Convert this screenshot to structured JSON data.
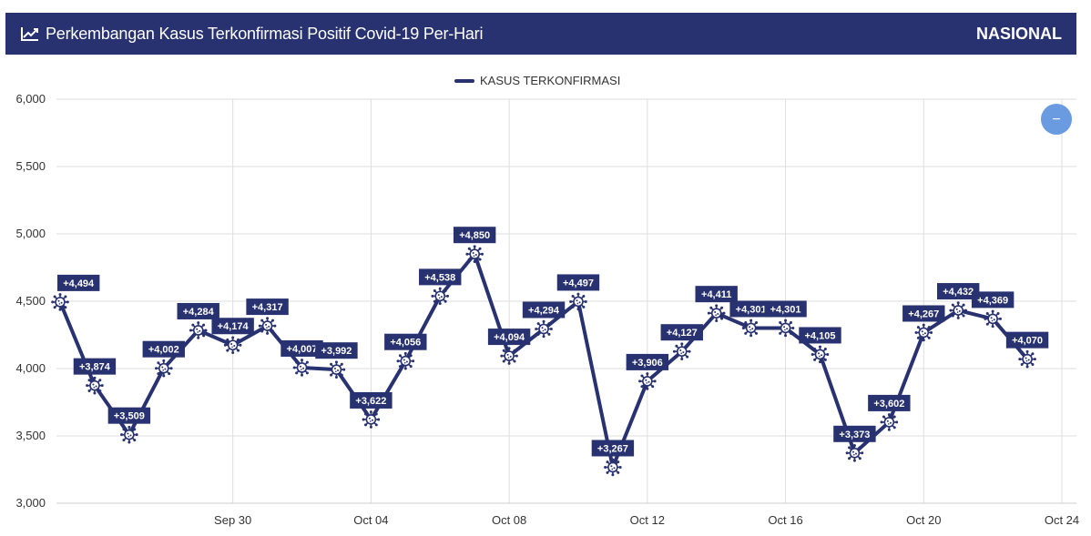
{
  "header": {
    "title": "Perkembangan Kasus Terkonfirmasi Positif Covid-19 Per-Hari",
    "scope": "NASIONAL",
    "icon": "trend-chart-icon"
  },
  "colors": {
    "primary": "#283271",
    "zoom_button": "#6a9ae0",
    "grid": "#dddddd"
  },
  "zoom_button": {
    "icon": "minus-icon",
    "symbol": "−"
  },
  "chart_data": {
    "type": "line",
    "title": "",
    "xlabel": "",
    "ylabel": "",
    "ylim": [
      3000,
      6000
    ],
    "yticks": [
      3000,
      3500,
      4000,
      4500,
      5000,
      5500,
      6000
    ],
    "ytick_labels": [
      "3,000",
      "3,500",
      "4,000",
      "4,500",
      "5,000",
      "5,500",
      "6,000"
    ],
    "x_range": [
      "2020-09-25",
      "2020-10-24"
    ],
    "xticks": [
      {
        "date": "2020-09-30",
        "label": "Sep 30"
      },
      {
        "date": "2020-10-04",
        "label": "Oct 04"
      },
      {
        "date": "2020-10-08",
        "label": "Oct 08"
      },
      {
        "date": "2020-10-12",
        "label": "Oct 12"
      },
      {
        "date": "2020-10-16",
        "label": "Oct 16"
      },
      {
        "date": "2020-10-20",
        "label": "Oct 20"
      },
      {
        "date": "2020-10-24",
        "label": "Oct 24"
      }
    ],
    "grid": true,
    "legend_position": "top-center",
    "series": [
      {
        "name": "KASUS TERKONFIRMASI",
        "color": "#283271",
        "marker": "virus-icon",
        "points": [
          {
            "x": "2020-09-25",
            "y": 4494,
            "label": "+4,494"
          },
          {
            "x": "2020-09-26",
            "y": 3874,
            "label": "+3,874"
          },
          {
            "x": "2020-09-27",
            "y": 3509,
            "label": "+3,509"
          },
          {
            "x": "2020-09-28",
            "y": 4002,
            "label": "+4,002"
          },
          {
            "x": "2020-09-29",
            "y": 4284,
            "label": "+4,284"
          },
          {
            "x": "2020-09-30",
            "y": 4174,
            "label": "+4,174"
          },
          {
            "x": "2020-10-01",
            "y": 4317,
            "label": "+4,317"
          },
          {
            "x": "2020-10-02",
            "y": 4007,
            "label": "+4,007"
          },
          {
            "x": "2020-10-03",
            "y": 3992,
            "label": "+3,992"
          },
          {
            "x": "2020-10-04",
            "y": 3622,
            "label": "+3,622"
          },
          {
            "x": "2020-10-05",
            "y": 4056,
            "label": "+4,056"
          },
          {
            "x": "2020-10-06",
            "y": 4538,
            "label": "+4,538"
          },
          {
            "x": "2020-10-07",
            "y": 4850,
            "label": "+4,850"
          },
          {
            "x": "2020-10-08",
            "y": 4094,
            "label": "+4,094"
          },
          {
            "x": "2020-10-09",
            "y": 4294,
            "label": "+4,294"
          },
          {
            "x": "2020-10-10",
            "y": 4497,
            "label": "+4,497"
          },
          {
            "x": "2020-10-11",
            "y": 3267,
            "label": "+3,267"
          },
          {
            "x": "2020-10-12",
            "y": 3906,
            "label": "+3,906"
          },
          {
            "x": "2020-10-13",
            "y": 4127,
            "label": "+4,127"
          },
          {
            "x": "2020-10-14",
            "y": 4411,
            "label": "+4,411"
          },
          {
            "x": "2020-10-15",
            "y": 4301,
            "label": "+4,301"
          },
          {
            "x": "2020-10-16",
            "y": 4301,
            "label": "+4,301"
          },
          {
            "x": "2020-10-17",
            "y": 4105,
            "label": "+4,105"
          },
          {
            "x": "2020-10-18",
            "y": 3373,
            "label": "+3,373"
          },
          {
            "x": "2020-10-19",
            "y": 3602,
            "label": "+3,602"
          },
          {
            "x": "2020-10-20",
            "y": 4267,
            "label": "+4,267"
          },
          {
            "x": "2020-10-21",
            "y": 4432,
            "label": "+4,432"
          },
          {
            "x": "2020-10-22",
            "y": 4369,
            "label": "+4,369"
          },
          {
            "x": "2020-10-23",
            "y": 4070,
            "label": "+4,070"
          }
        ]
      }
    ]
  }
}
